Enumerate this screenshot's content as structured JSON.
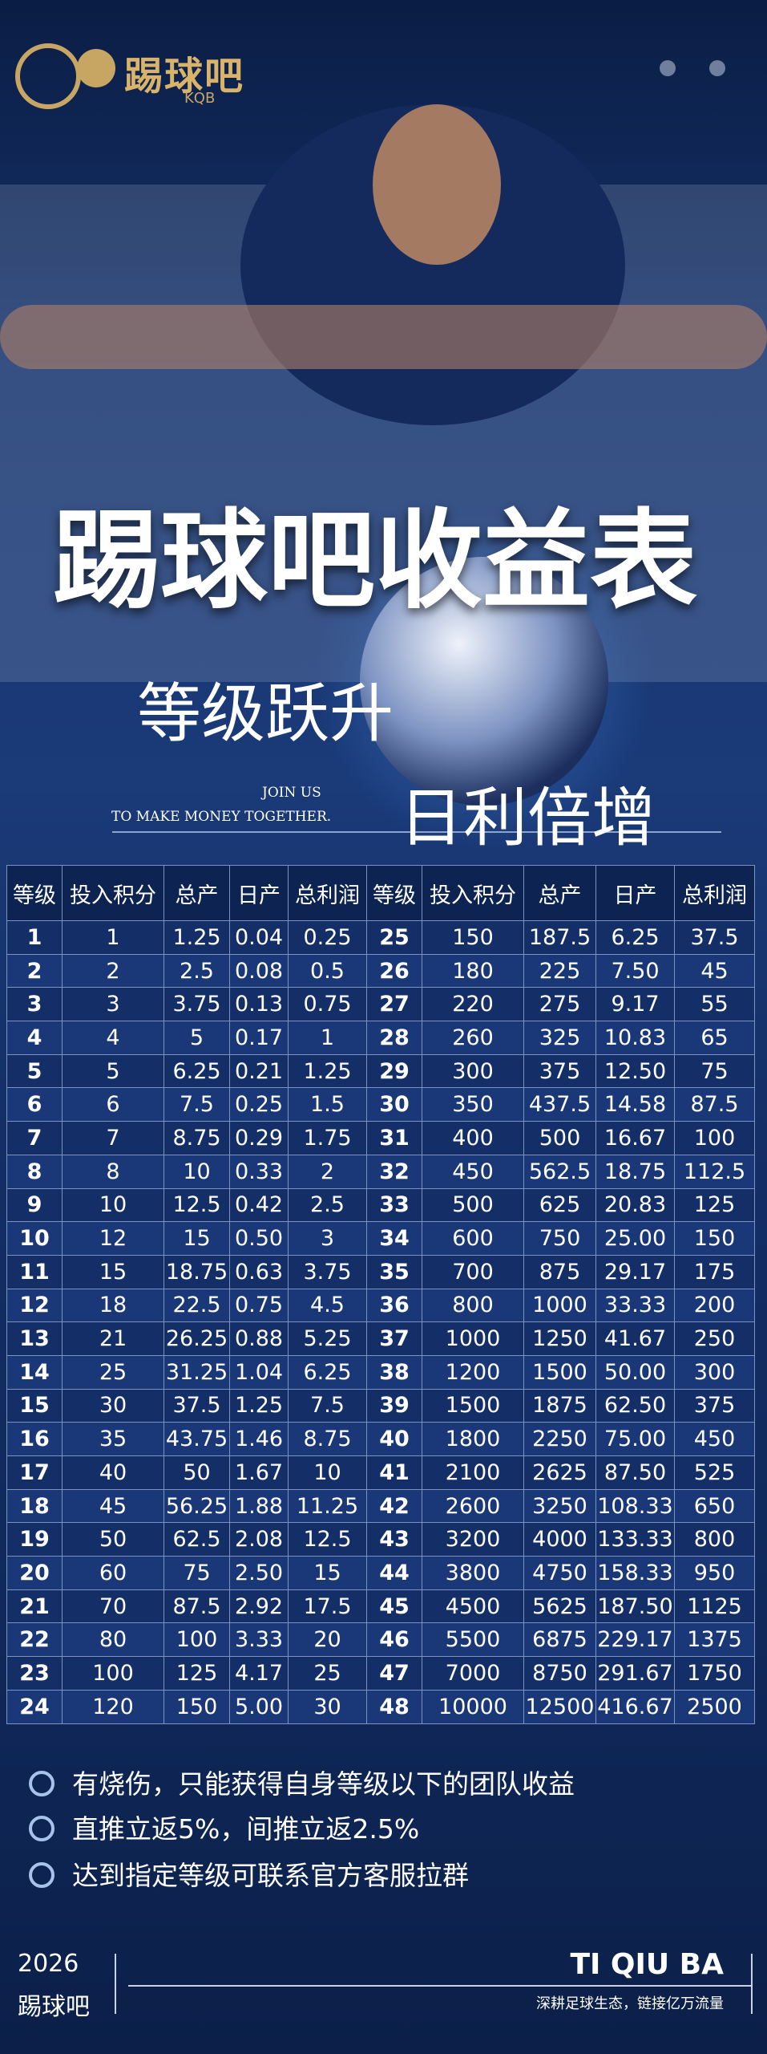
{
  "header": {
    "logo": "踢球吧",
    "logo_sub": "KQB"
  },
  "hero": {
    "title": "踢球吧收益表",
    "slogan_1": "等级跃升",
    "join": "JOIN US",
    "join_sub": "TO MAKE MONEY TOGETHER.",
    "slogan_2": "日利倍增"
  },
  "table": {
    "header": [
      "等级",
      "投入积分",
      "总产",
      "日产",
      "总利润",
      "等级",
      "投入积分",
      "总产",
      "日产",
      "总利润"
    ],
    "rows": [
      [
        "1",
        "1",
        "1.25",
        "0.04",
        "0.25",
        "25",
        "150",
        "187.5",
        "6.25",
        "37.5"
      ],
      [
        "2",
        "2",
        "2.5",
        "0.08",
        "0.5",
        "26",
        "180",
        "225",
        "7.50",
        "45"
      ],
      [
        "3",
        "3",
        "3.75",
        "0.13",
        "0.75",
        "27",
        "220",
        "275",
        "9.17",
        "55"
      ],
      [
        "4",
        "4",
        "5",
        "0.17",
        "1",
        "28",
        "260",
        "325",
        "10.83",
        "65"
      ],
      [
        "5",
        "5",
        "6.25",
        "0.21",
        "1.25",
        "29",
        "300",
        "375",
        "12.50",
        "75"
      ],
      [
        "6",
        "6",
        "7.5",
        "0.25",
        "1.5",
        "30",
        "350",
        "437.5",
        "14.58",
        "87.5"
      ],
      [
        "7",
        "7",
        "8.75",
        "0.29",
        "1.75",
        "31",
        "400",
        "500",
        "16.67",
        "100"
      ],
      [
        "8",
        "8",
        "10",
        "0.33",
        "2",
        "32",
        "450",
        "562.5",
        "18.75",
        "112.5"
      ],
      [
        "9",
        "10",
        "12.5",
        "0.42",
        "2.5",
        "33",
        "500",
        "625",
        "20.83",
        "125"
      ],
      [
        "10",
        "12",
        "15",
        "0.50",
        "3",
        "34",
        "600",
        "750",
        "25.00",
        "150"
      ],
      [
        "11",
        "15",
        "18.75",
        "0.63",
        "3.75",
        "35",
        "700",
        "875",
        "29.17",
        "175"
      ],
      [
        "12",
        "18",
        "22.5",
        "0.75",
        "4.5",
        "36",
        "800",
        "1000",
        "33.33",
        "200"
      ],
      [
        "13",
        "21",
        "26.25",
        "0.88",
        "5.25",
        "37",
        "1000",
        "1250",
        "41.67",
        "250"
      ],
      [
        "14",
        "25",
        "31.25",
        "1.04",
        "6.25",
        "38",
        "1200",
        "1500",
        "50.00",
        "300"
      ],
      [
        "15",
        "30",
        "37.5",
        "1.25",
        "7.5",
        "39",
        "1500",
        "1875",
        "62.50",
        "375"
      ],
      [
        "16",
        "35",
        "43.75",
        "1.46",
        "8.75",
        "40",
        "1800",
        "2250",
        "75.00",
        "450"
      ],
      [
        "17",
        "40",
        "50",
        "1.67",
        "10",
        "41",
        "2100",
        "2625",
        "87.50",
        "525"
      ],
      [
        "18",
        "45",
        "56.25",
        "1.88",
        "11.25",
        "42",
        "2600",
        "3250",
        "108.33",
        "650"
      ],
      [
        "19",
        "50",
        "62.5",
        "2.08",
        "12.5",
        "43",
        "3200",
        "4000",
        "133.33",
        "800"
      ],
      [
        "20",
        "60",
        "75",
        "2.50",
        "15",
        "44",
        "3800",
        "4750",
        "158.33",
        "950"
      ],
      [
        "21",
        "70",
        "87.5",
        "2.92",
        "17.5",
        "45",
        "4500",
        "5625",
        "187.50",
        "1125"
      ],
      [
        "22",
        "80",
        "100",
        "3.33",
        "20",
        "46",
        "5500",
        "6875",
        "229.17",
        "1375"
      ],
      [
        "23",
        "100",
        "125",
        "4.17",
        "25",
        "47",
        "7000",
        "8750",
        "291.67",
        "1750"
      ],
      [
        "24",
        "120",
        "150",
        "5.00",
        "30",
        "48",
        "10000",
        "12500",
        "416.67",
        "2500"
      ]
    ]
  },
  "notes": [
    "有烧伤，只能获得自身等级以下的团队收益",
    "直推立返5%，间推立返2.5%",
    "达到指定等级可联系官方客服拉群"
  ],
  "footer": {
    "year": "2026",
    "brand": "踢球吧",
    "name": "TI QIU BA",
    "tagline": "深耕足球生态，链接亿万流量"
  }
}
